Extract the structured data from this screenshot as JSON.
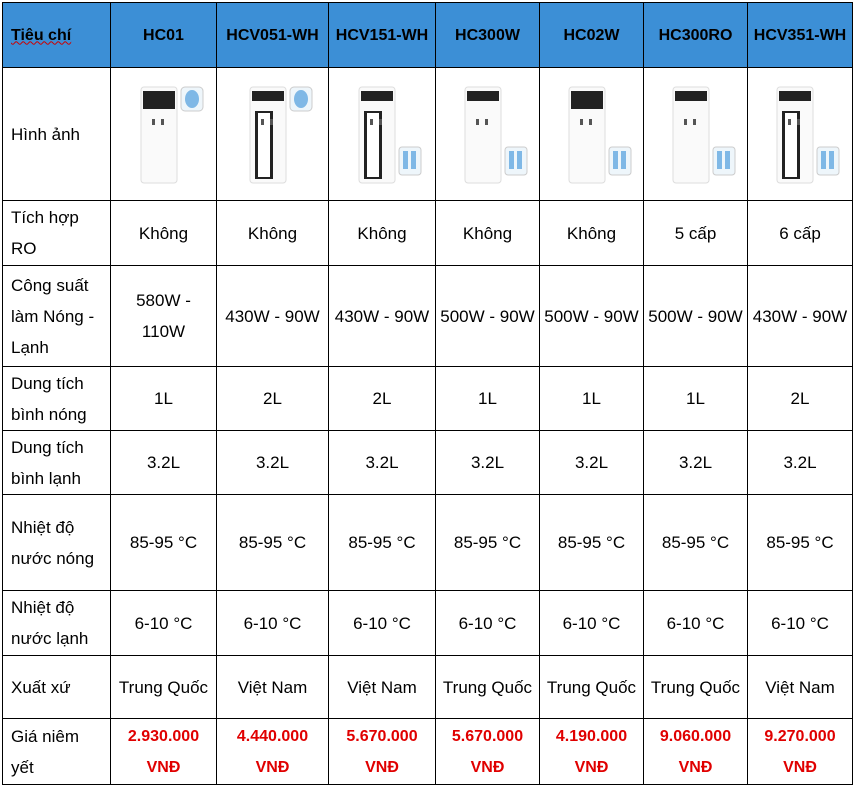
{
  "table": {
    "header": [
      "Tiêu chí",
      "HC01",
      "HCV051-WH",
      "HCV151-WH",
      "HC300W",
      "HC02W",
      "HC300RO",
      "HCV351-WH"
    ],
    "image_row_label": "Hình ảnh",
    "rows": [
      [
        "Tích hợp RO",
        "Không",
        "Không",
        "Không",
        "Không",
        "Không",
        "5 cấp",
        "6 cấp"
      ],
      [
        "Công suất làm Nóng - Lạnh",
        "580W - 110W",
        "430W - 90W",
        "430W - 90W",
        "500W - 90W",
        "500W - 90W",
        "500W - 90W",
        "430W - 90W"
      ],
      [
        "Dung tích bình nóng",
        "1L",
        "2L",
        "2L",
        "1L",
        "1L",
        "1L",
        "2L"
      ],
      [
        "Dung tích bình lạnh",
        "3.2L",
        "3.2L",
        "3.2L",
        "3.2L",
        "3.2L",
        "3.2L",
        "3.2L"
      ],
      [
        "Nhiệt độ nước nóng",
        "85-95 °C",
        "85-95 °C",
        "85-95 °C",
        "85-95 °C",
        "85-95 °C",
        "85-95 °C",
        "85-95 °C"
      ],
      [
        "Nhiệt độ nước lạnh",
        "6-10 °C",
        "6-10 °C",
        "6-10 °C",
        "6-10 °C",
        "6-10 °C",
        "6-10 °C",
        "6-10 °C"
      ],
      [
        "Xuất xứ",
        "Trung Quốc",
        "Việt Nam",
        "Việt Nam",
        "Trung Quốc",
        "Trung Quốc",
        "Trung Quốc",
        "Việt Nam"
      ],
      [
        "Giá niêm yết",
        "2.930.000 VNĐ",
        "4.440.000 VNĐ",
        "5.670.000 VNĐ",
        "5.670.000 VNĐ",
        "4.190.000 VNĐ",
        "9.060.000 VNĐ",
        "9.270.000 VNĐ"
      ]
    ]
  }
}
